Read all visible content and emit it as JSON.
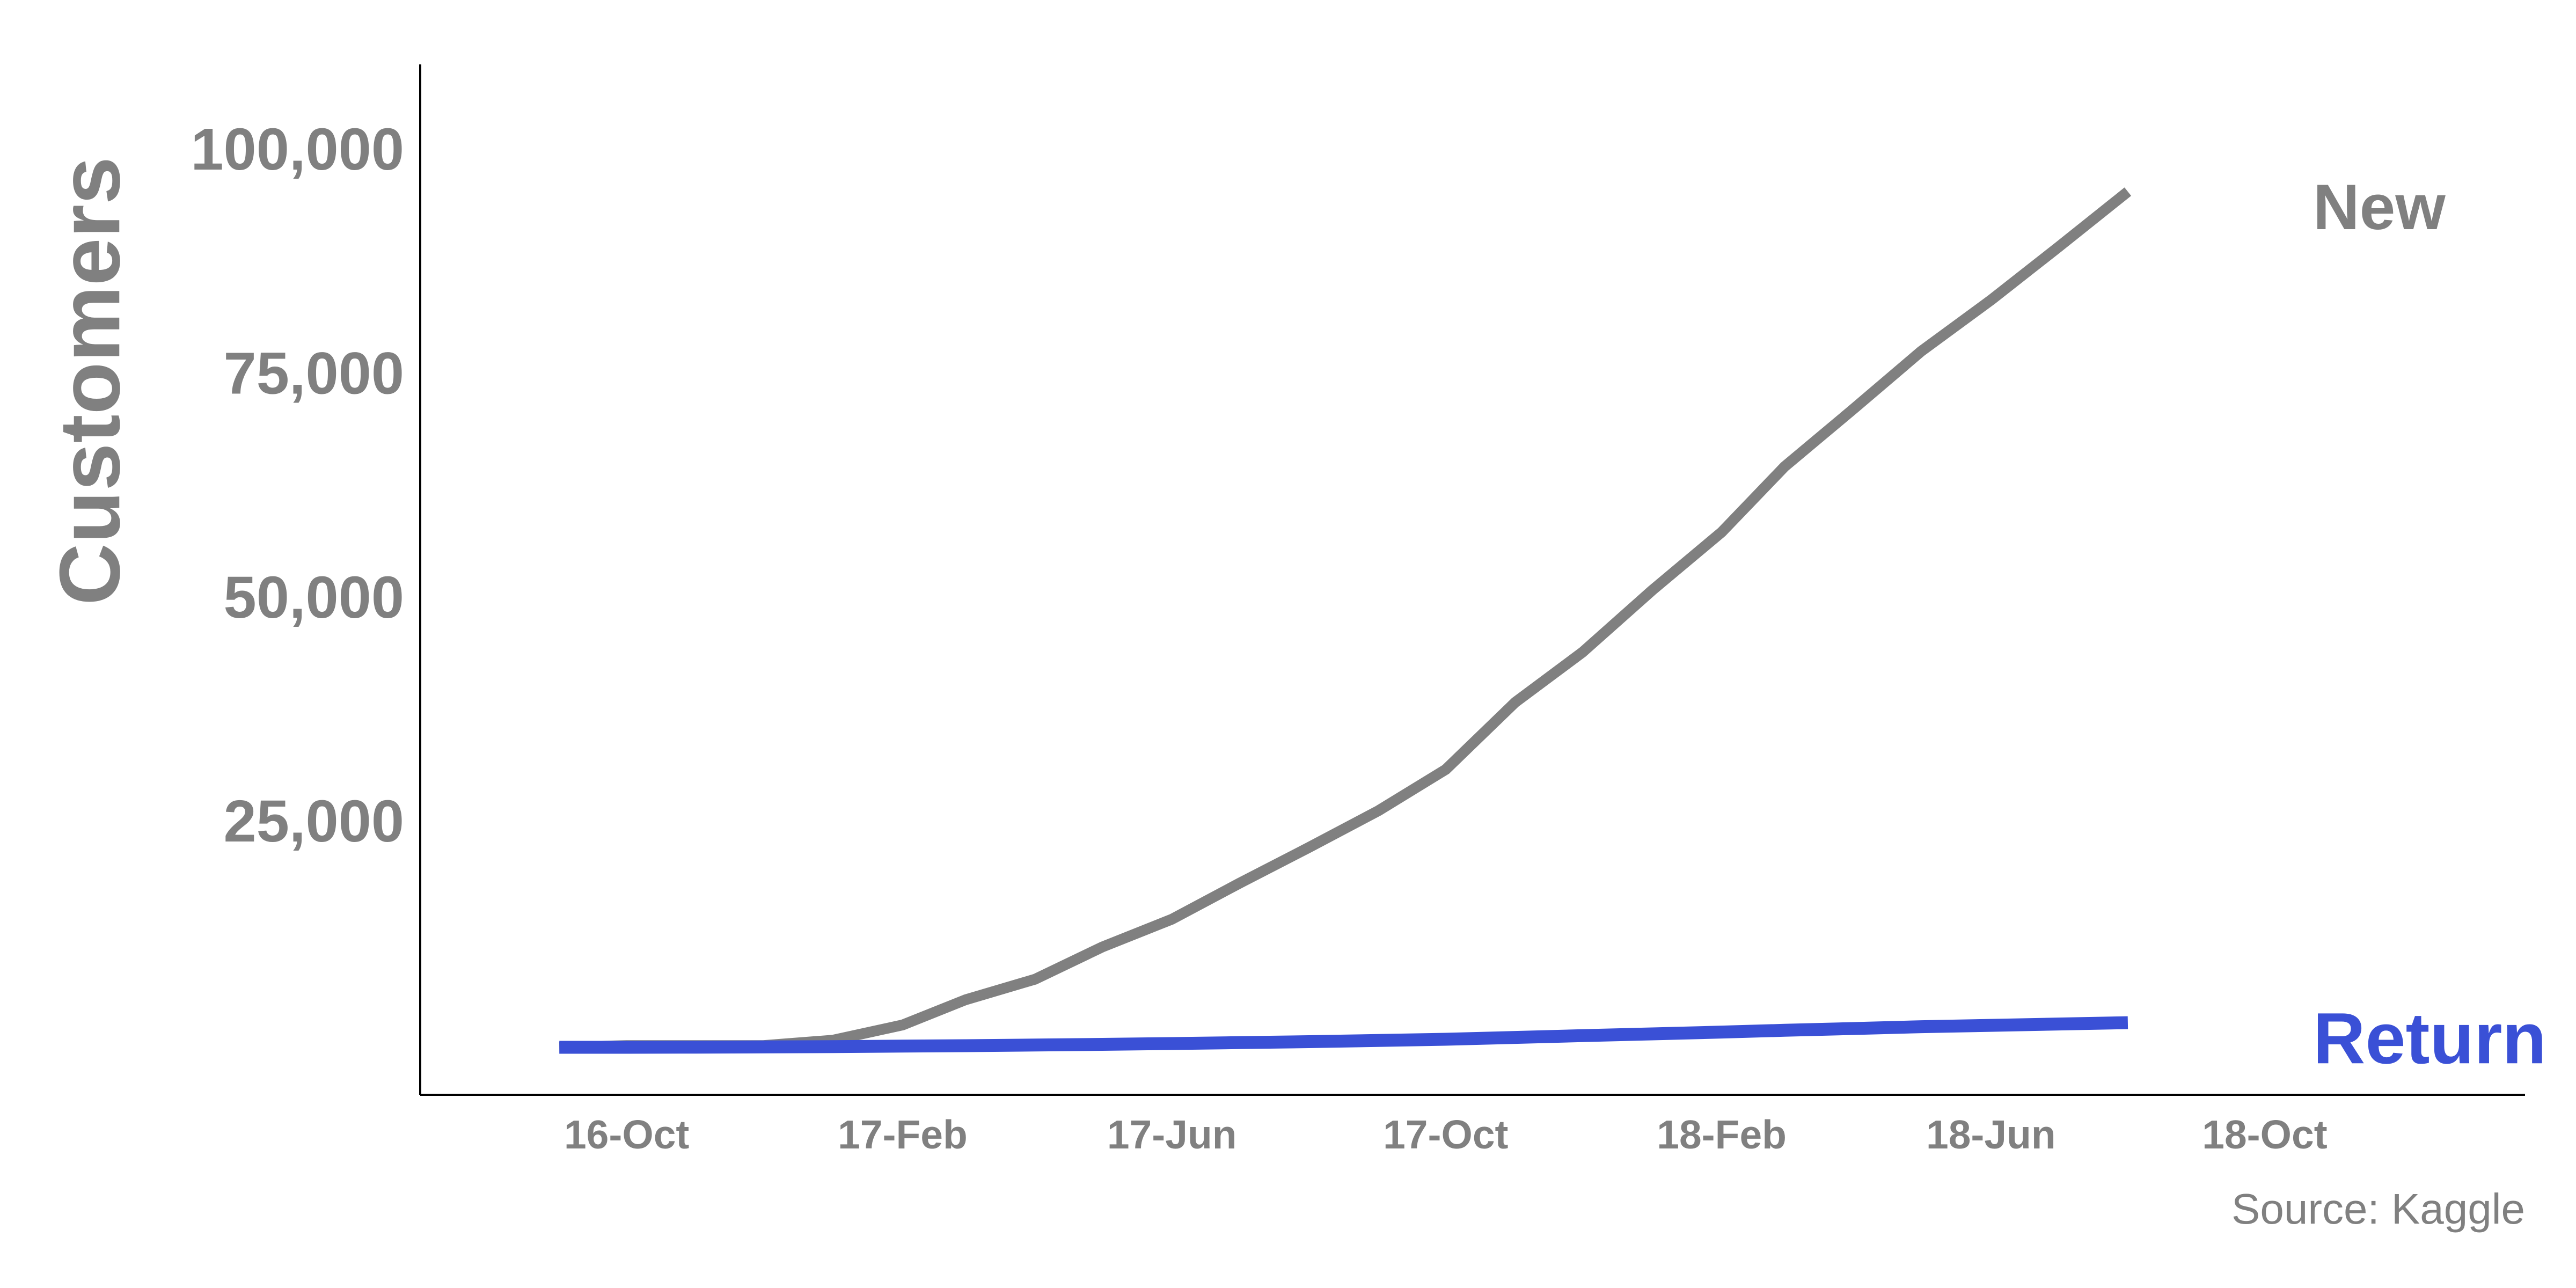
{
  "chart_data": {
    "type": "line",
    "title": "",
    "xlabel": "",
    "ylabel": "Customers",
    "x_ticks": [
      "16-Oct",
      "17-Feb",
      "17-Jun",
      "17-Oct",
      "18-Feb",
      "18-Jun",
      "18-Oct"
    ],
    "y_ticks": [
      "25,000",
      "50,000",
      "75,000",
      "100,000"
    ],
    "y_tick_values": [
      25000,
      50000,
      75000,
      100000
    ],
    "ylim": [
      -5000,
      110000
    ],
    "xlim": [
      "2016-07-01",
      "2019-01-25"
    ],
    "grid": false,
    "x": [
      "2016-09",
      "2016-10",
      "2016-11",
      "2016-12",
      "2017-01",
      "2017-02",
      "2017-03",
      "2017-04",
      "2017-05",
      "2017-06",
      "2017-07",
      "2017-08",
      "2017-09",
      "2017-10",
      "2017-11",
      "2017-12",
      "2018-01",
      "2018-02",
      "2018-03",
      "2018-04",
      "2018-05",
      "2018-06",
      "2018-07",
      "2018-08"
    ],
    "series": [
      {
        "name": "New",
        "color": "#808080",
        "values": [
          300,
          500,
          500,
          500,
          1100,
          2800,
          5600,
          7900,
          11500,
          14600,
          18600,
          22600,
          26700,
          31300,
          38800,
          44400,
          51300,
          57800,
          65100,
          71600,
          78000,
          83700,
          89600,
          95800
        ]
      },
      {
        "name": "Return",
        "color": "#3a50d6",
        "values": [
          300,
          300,
          320,
          340,
          380,
          430,
          480,
          550,
          630,
          720,
          820,
          930,
          1060,
          1200,
          1400,
          1600,
          1800,
          2000,
          2200,
          2400,
          2600,
          2750,
          2900,
          3050
        ]
      }
    ]
  },
  "source": "Source: Kaggle"
}
